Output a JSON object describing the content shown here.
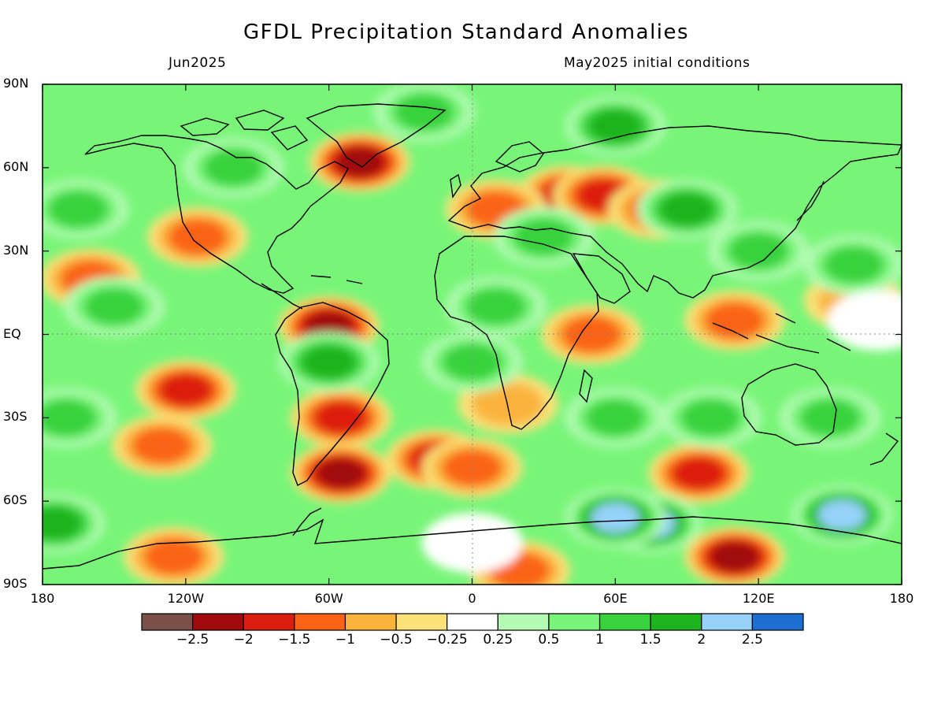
{
  "title": "GFDL Precipitation Standard Anomalies",
  "subtitle_left": "Jun2025",
  "subtitle_right": "May2025 initial conditions",
  "lat_labels": [
    "90N",
    "60N",
    "30N",
    "EQ",
    "30S",
    "60S",
    "90S"
  ],
  "lon_labels": [
    "180",
    "120W",
    "60W",
    "0",
    "60E",
    "120E",
    "180"
  ],
  "colorbar": {
    "colors": [
      "#7a5048",
      "#a00c0c",
      "#dc1e10",
      "#fa6414",
      "#fab43c",
      "#fae178",
      "#ffffff",
      "#b4fab4",
      "#78f578",
      "#37d23c",
      "#1eb41e",
      "#96d2fa",
      "#1e6ed2"
    ],
    "labels": [
      "−2.5",
      "−2",
      "−1.5",
      "−1",
      "−0.5",
      "−0.25",
      "0.25",
      "0.5",
      "1",
      "1.5",
      "2",
      "2.5"
    ]
  },
  "anomaly_blobs": [
    {
      "lon": -47,
      "lat": 62,
      "v": -2.2
    },
    {
      "lon": 40,
      "lat": 50,
      "v": -2.0
    },
    {
      "lon": 55,
      "lat": 50,
      "v": -1.8
    },
    {
      "lon": 78,
      "lat": 45,
      "v": -1.5
    },
    {
      "lon": 10,
      "lat": 45,
      "v": -1.4
    },
    {
      "lon": -115,
      "lat": 35,
      "v": -1.2
    },
    {
      "lon": -160,
      "lat": 20,
      "v": -1.3
    },
    {
      "lon": -60,
      "lat": 3,
      "v": -2.2
    },
    {
      "lon": -55,
      "lat": -30,
      "v": -2.0
    },
    {
      "lon": -55,
      "lat": -50,
      "v": -2.3
    },
    {
      "lon": -120,
      "lat": -20,
      "v": -1.8
    },
    {
      "lon": -130,
      "lat": -40,
      "v": -1.5
    },
    {
      "lon": -15,
      "lat": -45,
      "v": -2.0
    },
    {
      "lon": 0,
      "lat": -48,
      "v": -1.5
    },
    {
      "lon": 95,
      "lat": -50,
      "v": -2.0
    },
    {
      "lon": 110,
      "lat": -80,
      "v": -2.2
    },
    {
      "lon": -125,
      "lat": -80,
      "v": -1.6
    },
    {
      "lon": 110,
      "lat": 5,
      "v": -1.6
    },
    {
      "lon": 50,
      "lat": 0,
      "v": -1.5
    },
    {
      "lon": 15,
      "lat": -25,
      "v": -1.0
    },
    {
      "lon": 160,
      "lat": 12,
      "v": -1.0
    },
    {
      "lon": 20,
      "lat": -85,
      "v": -1.2
    },
    {
      "lon": 90,
      "lat": 45,
      "v": 2.0
    },
    {
      "lon": 60,
      "lat": 75,
      "v": 2.0
    },
    {
      "lon": 75,
      "lat": -68,
      "v": 2.5
    },
    {
      "lon": 60,
      "lat": -66,
      "v": 2.5
    },
    {
      "lon": 155,
      "lat": -65,
      "v": 2.3
    },
    {
      "lon": -175,
      "lat": -68,
      "v": 2.0
    },
    {
      "lon": 0,
      "lat": -10,
      "v": 1.5
    },
    {
      "lon": 10,
      "lat": 10,
      "v": 1.2
    },
    {
      "lon": 30,
      "lat": 35,
      "v": 1.3
    },
    {
      "lon": 120,
      "lat": 30,
      "v": 1.5
    },
    {
      "lon": 160,
      "lat": 25,
      "v": 1.5
    },
    {
      "lon": -165,
      "lat": 45,
      "v": 1.4
    },
    {
      "lon": -170,
      "lat": -30,
      "v": 1.5
    },
    {
      "lon": 150,
      "lat": -30,
      "v": 1.5
    },
    {
      "lon": 100,
      "lat": -30,
      "v": 1.2
    },
    {
      "lon": 60,
      "lat": -30,
      "v": 1.2
    },
    {
      "lon": -20,
      "lat": 80,
      "v": 1.5
    },
    {
      "lon": -60,
      "lat": -10,
      "v": 1.8
    },
    {
      "lon": -150,
      "lat": 10,
      "v": 1.2
    },
    {
      "lon": -100,
      "lat": 60,
      "v": 1.2
    },
    {
      "lon": 0,
      "lat": -75,
      "v": 0.1
    },
    {
      "lon": 170,
      "lat": 5,
      "v": 0.1
    }
  ]
}
